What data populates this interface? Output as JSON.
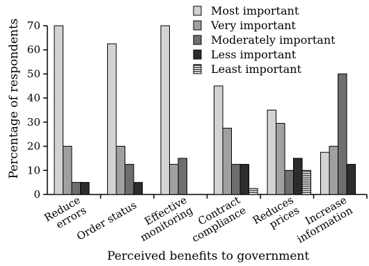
{
  "chart_data": {
    "type": "bar",
    "xlabel": "Perceived benefits to government",
    "ylabel": "Percentage of respondents",
    "ylim": [
      0,
      70
    ],
    "yticks": [
      0,
      10,
      20,
      30,
      40,
      50,
      60,
      70
    ],
    "grid": false,
    "legend_position": "top-right",
    "categories": [
      [
        "Reduce",
        "errors"
      ],
      [
        "Order status"
      ],
      [
        "Effective",
        "monitoring"
      ],
      [
        "Contract",
        "compliance"
      ],
      [
        "Reduces",
        "prices"
      ],
      [
        "Increase",
        "information"
      ]
    ],
    "series": [
      {
        "name": "Most important",
        "color": "#d3d3d3",
        "pattern": "solid",
        "values": [
          70,
          62.5,
          70,
          45,
          35,
          17.5
        ]
      },
      {
        "name": "Very important",
        "color": "#a0a0a0",
        "pattern": "solid",
        "values": [
          20,
          20,
          12.5,
          27.5,
          29.5,
          20
        ]
      },
      {
        "name": "Moderately important",
        "color": "#6e6e6e",
        "pattern": "solid",
        "values": [
          5,
          12.5,
          15,
          12.5,
          10,
          50
        ]
      },
      {
        "name": "Less important",
        "color": "#2c2c2c",
        "pattern": "solid",
        "values": [
          5,
          5,
          0,
          12.5,
          15,
          12.5
        ]
      },
      {
        "name": "Least important",
        "color": "#ffffff",
        "pattern": "horizontal-lines",
        "values": [
          0,
          0,
          0,
          2.5,
          10,
          0
        ]
      }
    ]
  }
}
